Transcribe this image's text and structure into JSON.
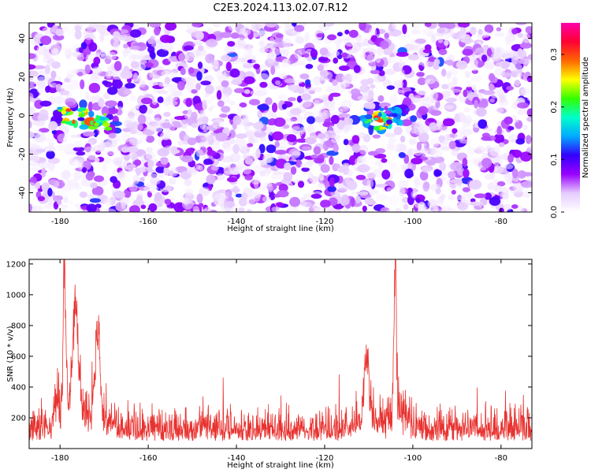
{
  "title": "C2E3.2024.113.02.07.R12",
  "chart_data": [
    {
      "type": "heatmap",
      "xlabel": "Height of straight line (km)",
      "ylabel": "Frequency (Hz)",
      "xlim": [
        -187,
        -73
      ],
      "ylim": [
        -50,
        48
      ],
      "x_ticks": [
        -180,
        -160,
        -140,
        -120,
        -100,
        -80
      ],
      "y_ticks": [
        -40,
        -20,
        0,
        20,
        40
      ],
      "colorbar": {
        "label": "Normalized spectral amplitude",
        "range": [
          0.0,
          0.36
        ],
        "ticks": [
          0.0,
          0.1,
          0.2,
          0.3
        ],
        "colormap": [
          "#ffffff",
          "#e6ccff",
          "#9900ff",
          "#3300ff",
          "#00aaff",
          "#00ffcc",
          "#33ff00",
          "#ffff00",
          "#ff6600",
          "#ff0033",
          "#ff00aa"
        ]
      },
      "hotspots": [
        {
          "x": -177,
          "freq": 0,
          "amplitude": 0.3
        },
        {
          "x": -172,
          "freq": -3,
          "amplitude": 0.25
        },
        {
          "x": -108,
          "freq": -3,
          "amplitude": 0.3
        },
        {
          "x": -104,
          "freq": 0,
          "amplitude": 0.15
        }
      ],
      "background_level": 0.05,
      "grid": false
    },
    {
      "type": "line",
      "xlabel": "Height of straight line (km)",
      "ylabel": "SNR (10 * v/v)",
      "xlim": [
        -187,
        -73
      ],
      "ylim": [
        0,
        1230
      ],
      "x_ticks": [
        -180,
        -160,
        -140,
        -120,
        -100,
        -80
      ],
      "y_ticks": [
        200,
        400,
        600,
        800,
        1000,
        1200
      ],
      "color": "#e8322f",
      "peaks": [
        {
          "x": -179,
          "value": 1230
        },
        {
          "x": -176.5,
          "value": 855
        },
        {
          "x": -171.5,
          "value": 740
        },
        {
          "x": -110.5,
          "value": 590
        },
        {
          "x": -104,
          "value": 1220
        }
      ],
      "noise_floor": [
        50,
        250
      ],
      "grid": false
    }
  ]
}
